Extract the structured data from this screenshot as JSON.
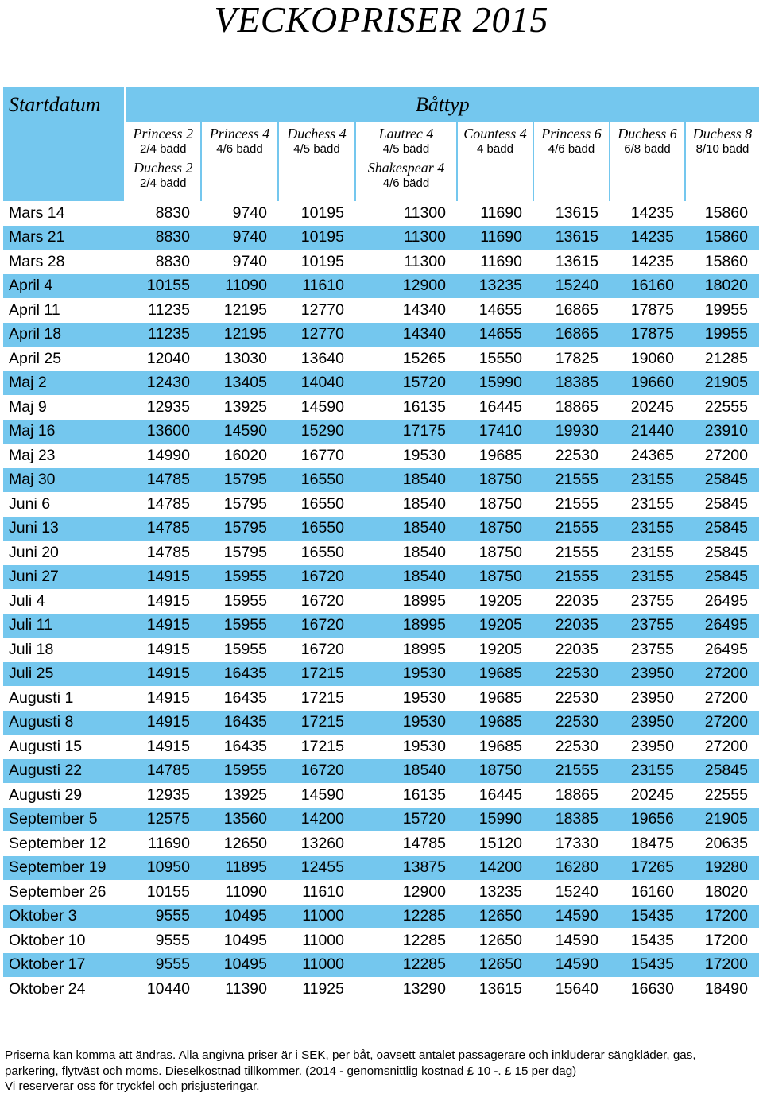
{
  "title": "VECKOPRISER 2015",
  "header": {
    "startdatum": "Startdatum",
    "battyp": "Båttyp"
  },
  "boats": [
    {
      "name": "Princess 2",
      "beds": "2/4 bädd",
      "name2": "Duchess 2",
      "beds2": "2/4 bädd"
    },
    {
      "name": "Princess 4",
      "beds": "4/6 bädd",
      "name2": "",
      "beds2": ""
    },
    {
      "name": "Duchess 4",
      "beds": "4/5 bädd",
      "name2": "",
      "beds2": ""
    },
    {
      "name": "Lautrec 4",
      "beds": "4/5 bädd",
      "name2": "Shakespear 4",
      "beds2": "4/6 bädd"
    },
    {
      "name": "Countess 4",
      "beds": "4 bädd",
      "name2": "",
      "beds2": ""
    },
    {
      "name": "Princess 6",
      "beds": "4/6 bädd",
      "name2": "",
      "beds2": ""
    },
    {
      "name": "Duchess 6",
      "beds": "6/8 bädd",
      "name2": "",
      "beds2": ""
    },
    {
      "name": "Duchess 8",
      "beds": "8/10 bädd",
      "name2": "",
      "beds2": ""
    }
  ],
  "rows": [
    {
      "date": "Mars 14",
      "prices": [
        "8830",
        "9740",
        "10195",
        "11300",
        "11690",
        "13615",
        "14235",
        "15860"
      ]
    },
    {
      "date": "Mars 21",
      "prices": [
        "8830",
        "9740",
        "10195",
        "11300",
        "11690",
        "13615",
        "14235",
        "15860"
      ]
    },
    {
      "date": "Mars 28",
      "prices": [
        "8830",
        "9740",
        "10195",
        "11300",
        "11690",
        "13615",
        "14235",
        "15860"
      ]
    },
    {
      "date": "April 4",
      "prices": [
        "10155",
        "11090",
        "11610",
        "12900",
        "13235",
        "15240",
        "16160",
        "18020"
      ]
    },
    {
      "date": "April 11",
      "prices": [
        "11235",
        "12195",
        "12770",
        "14340",
        "14655",
        "16865",
        "17875",
        "19955"
      ]
    },
    {
      "date": "April 18",
      "prices": [
        "11235",
        "12195",
        "12770",
        "14340",
        "14655",
        "16865",
        "17875",
        "19955"
      ]
    },
    {
      "date": "April 25",
      "prices": [
        "12040",
        "13030",
        "13640",
        "15265",
        "15550",
        "17825",
        "19060",
        "21285"
      ]
    },
    {
      "date": "Maj 2",
      "prices": [
        "12430",
        "13405",
        "14040",
        "15720",
        "15990",
        "18385",
        "19660",
        "21905"
      ]
    },
    {
      "date": "Maj 9",
      "prices": [
        "12935",
        "13925",
        "14590",
        "16135",
        "16445",
        "18865",
        "20245",
        "22555"
      ]
    },
    {
      "date": "Maj 16",
      "prices": [
        "13600",
        "14590",
        "15290",
        "17175",
        "17410",
        "19930",
        "21440",
        "23910"
      ]
    },
    {
      "date": "Maj 23",
      "prices": [
        "14990",
        "16020",
        "16770",
        "19530",
        "19685",
        "22530",
        "24365",
        "27200"
      ]
    },
    {
      "date": "Maj 30",
      "prices": [
        "14785",
        "15795",
        "16550",
        "18540",
        "18750",
        "21555",
        "23155",
        "25845"
      ]
    },
    {
      "date": "Juni 6",
      "prices": [
        "14785",
        "15795",
        "16550",
        "18540",
        "18750",
        "21555",
        "23155",
        "25845"
      ]
    },
    {
      "date": "Juni 13",
      "prices": [
        "14785",
        "15795",
        "16550",
        "18540",
        "18750",
        "21555",
        "23155",
        "25845"
      ]
    },
    {
      "date": "Juni 20",
      "prices": [
        "14785",
        "15795",
        "16550",
        "18540",
        "18750",
        "21555",
        "23155",
        "25845"
      ]
    },
    {
      "date": "Juni 27",
      "prices": [
        "14915",
        "15955",
        "16720",
        "18540",
        "18750",
        "21555",
        "23155",
        "25845"
      ]
    },
    {
      "date": "Juli 4",
      "prices": [
        "14915",
        "15955",
        "16720",
        "18995",
        "19205",
        "22035",
        "23755",
        "26495"
      ]
    },
    {
      "date": "Juli 11",
      "prices": [
        "14915",
        "15955",
        "16720",
        "18995",
        "19205",
        "22035",
        "23755",
        "26495"
      ]
    },
    {
      "date": "Juli 18",
      "prices": [
        "14915",
        "15955",
        "16720",
        "18995",
        "19205",
        "22035",
        "23755",
        "26495"
      ]
    },
    {
      "date": "Juli 25",
      "prices": [
        "14915",
        "16435",
        "17215",
        "19530",
        "19685",
        "22530",
        "23950",
        "27200"
      ]
    },
    {
      "date": "Augusti 1",
      "prices": [
        "14915",
        "16435",
        "17215",
        "19530",
        "19685",
        "22530",
        "23950",
        "27200"
      ]
    },
    {
      "date": "Augusti 8",
      "prices": [
        "14915",
        "16435",
        "17215",
        "19530",
        "19685",
        "22530",
        "23950",
        "27200"
      ]
    },
    {
      "date": "Augusti 15",
      "prices": [
        "14915",
        "16435",
        "17215",
        "19530",
        "19685",
        "22530",
        "23950",
        "27200"
      ]
    },
    {
      "date": "Augusti 22",
      "prices": [
        "14785",
        "15955",
        "16720",
        "18540",
        "18750",
        "21555",
        "23155",
        "25845"
      ]
    },
    {
      "date": "Augusti 29",
      "prices": [
        "12935",
        "13925",
        "14590",
        "16135",
        "16445",
        "18865",
        "20245",
        "22555"
      ]
    },
    {
      "date": "September 5",
      "prices": [
        "12575",
        "13560",
        "14200",
        "15720",
        "15990",
        "18385",
        "19656",
        "21905"
      ]
    },
    {
      "date": "September 12",
      "prices": [
        "11690",
        "12650",
        "13260",
        "14785",
        "15120",
        "17330",
        "18475",
        "20635"
      ]
    },
    {
      "date": "September 19",
      "prices": [
        "10950",
        "11895",
        "12455",
        "13875",
        "14200",
        "16280",
        "17265",
        "19280"
      ]
    },
    {
      "date": "September 26",
      "prices": [
        "10155",
        "11090",
        "11610",
        "12900",
        "13235",
        "15240",
        "16160",
        "18020"
      ]
    },
    {
      "date": "Oktober 3",
      "prices": [
        "9555",
        "10495",
        "11000",
        "12285",
        "12650",
        "14590",
        "15435",
        "17200"
      ]
    },
    {
      "date": "Oktober 10",
      "prices": [
        "9555",
        "10495",
        "11000",
        "12285",
        "12650",
        "14590",
        "15435",
        "17200"
      ]
    },
    {
      "date": "Oktober 17",
      "prices": [
        "9555",
        "10495",
        "11000",
        "12285",
        "12650",
        "14590",
        "15435",
        "17200"
      ]
    },
    {
      "date": "Oktober 24",
      "prices": [
        "10440",
        "11390",
        "11925",
        "13290",
        "13615",
        "15640",
        "16630",
        "18490"
      ]
    }
  ],
  "footer": [
    "Priserna kan komma att ändras.  Alla angivna priser är i SEK, per båt, oavsett antalet passagerare och inkluderar sängkläder, gas,",
    "parkering, flytväst och moms. Dieselkostnad tillkommer. (2014 - genomsnittlig kostnad £ 10 -. £ 15 per dag)",
    "Vi reserverar oss för tryckfel och prisjusteringar."
  ],
  "colors": {
    "accent_blue": "#74c7ee",
    "background": "#ffffff"
  }
}
